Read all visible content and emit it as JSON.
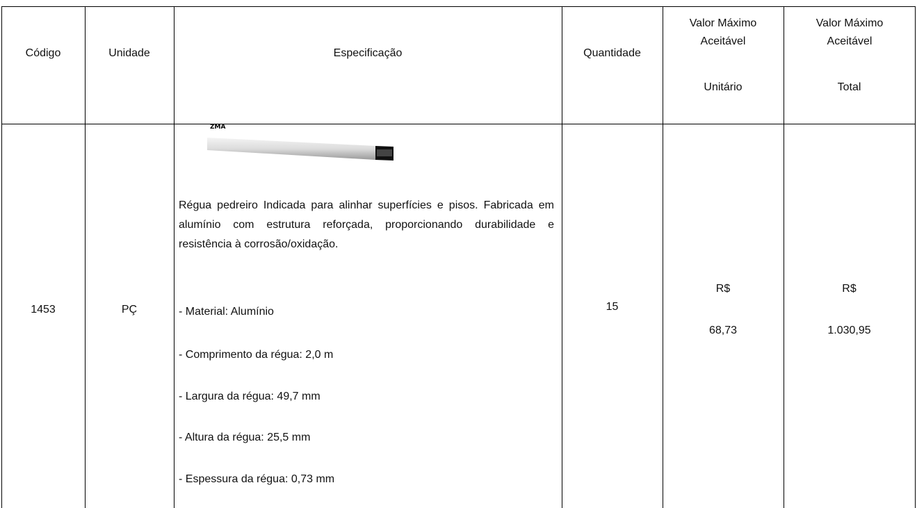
{
  "table": {
    "header": [
      "Código",
      "Unidade",
      "Especificação",
      "Quantidade",
      {
        "title": "Valor Máximo Aceitável",
        "subtitle": "Unitário"
      },
      {
        "title": "Valor Máximo Aceitável",
        "subtitle": "Total"
      }
    ],
    "rows": [
      {
        "code": "1453",
        "unit": "PÇ",
        "spec": {
          "image_label": "ZMA",
          "description": "Régua pedreiro Indicada para alinhar superfícies e pisos. Fabricada em alumínio com estrutura reforçada, proporcionando durabilidade e resistência à corrosão/oxidação.",
          "items": [
            "- Material: Alumínio",
            "- Comprimento da régua: 2,0 m",
            "- Largura da régua: 49,7 mm",
            "- Altura da régua: 25,5 mm",
            "- Espessura da régua: 0,73 mm"
          ]
        },
        "quantity": "15",
        "unit_price": {
          "currency": "R$",
          "amount": "68,73"
        },
        "total_price": {
          "currency": "R$",
          "amount": "1.030,95"
        }
      }
    ]
  }
}
